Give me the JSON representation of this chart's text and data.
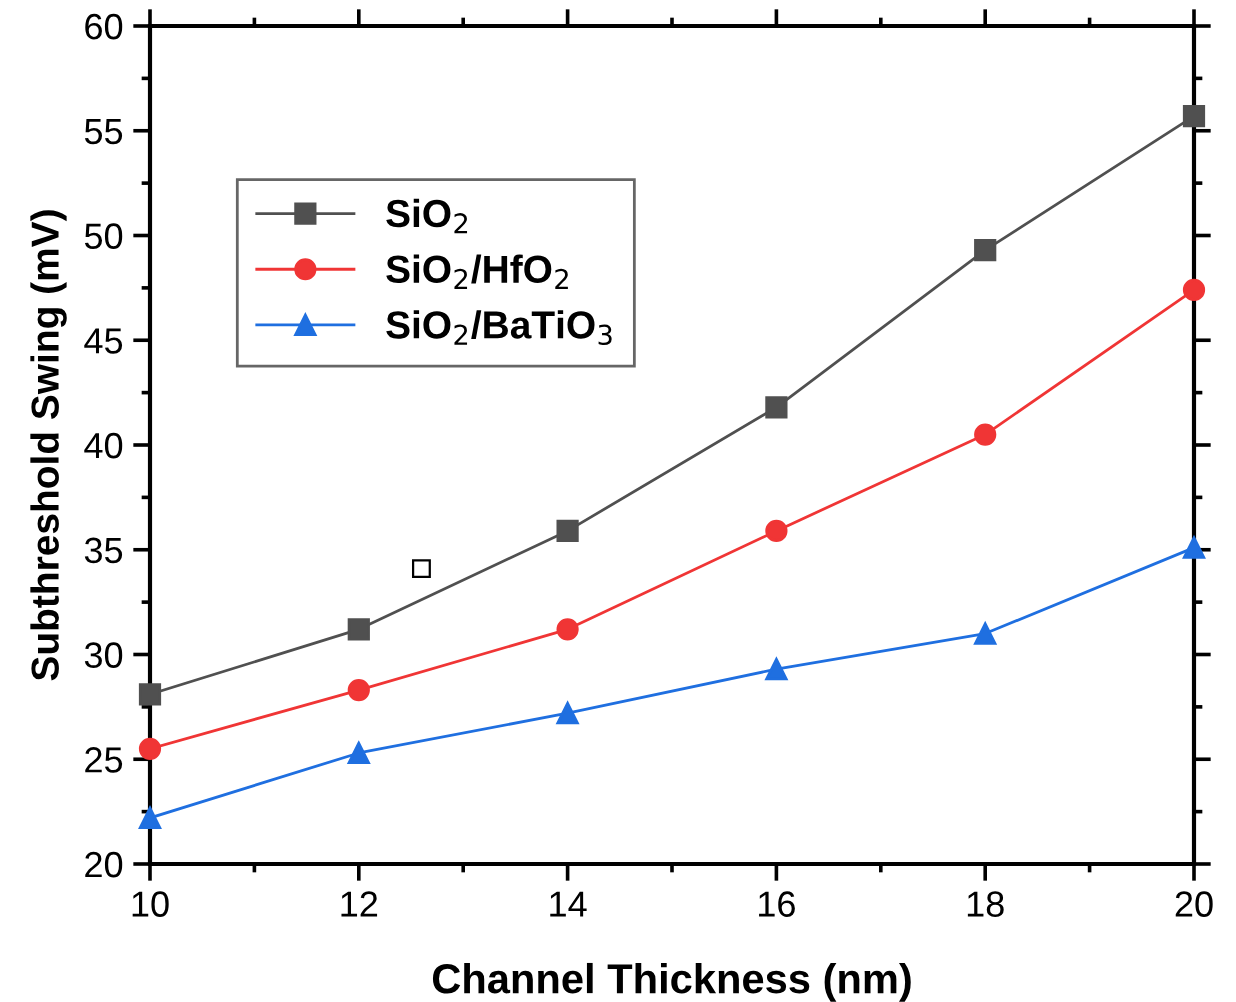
{
  "chart_data": {
    "type": "line",
    "xlabel": "Channel Thickness (nm)",
    "ylabel": "Subthreshold Swing (mV)",
    "x": [
      10,
      12,
      14,
      16,
      18,
      20
    ],
    "series": [
      {
        "name": "SiO$_{2}$",
        "color": "#505050",
        "marker": "square",
        "values": [
          28.1,
          31.2,
          35.9,
          41.8,
          49.3,
          55.7
        ]
      },
      {
        "name": "SiO$_{2}$/HfO$_{2}$",
        "color": "#f03535",
        "marker": "circle",
        "values": [
          25.5,
          28.3,
          31.2,
          35.9,
          40.5,
          47.4
        ]
      },
      {
        "name": "SiO$_{2}$/BaTiO$_{3}$",
        "color": "#1f6fe0",
        "marker": "triangle",
        "values": [
          22.2,
          25.3,
          27.2,
          29.3,
          31.0,
          35.1
        ]
      },
      {
        "type": "scatter",
        "color": "#000000",
        "marker": "square",
        "x": [
          12.6
        ],
        "values": [
          34.1
        ]
      }
    ],
    "xlim": [
      10,
      20
    ],
    "xticks": [
      10,
      12,
      14,
      16,
      18,
      20
    ],
    "ylim": [
      20,
      60
    ],
    "yticks": [
      20,
      25,
      30,
      35,
      40,
      45,
      50,
      55,
      60
    ],
    "grid": false,
    "legend": "top left",
    "line_style": "solid"
  }
}
